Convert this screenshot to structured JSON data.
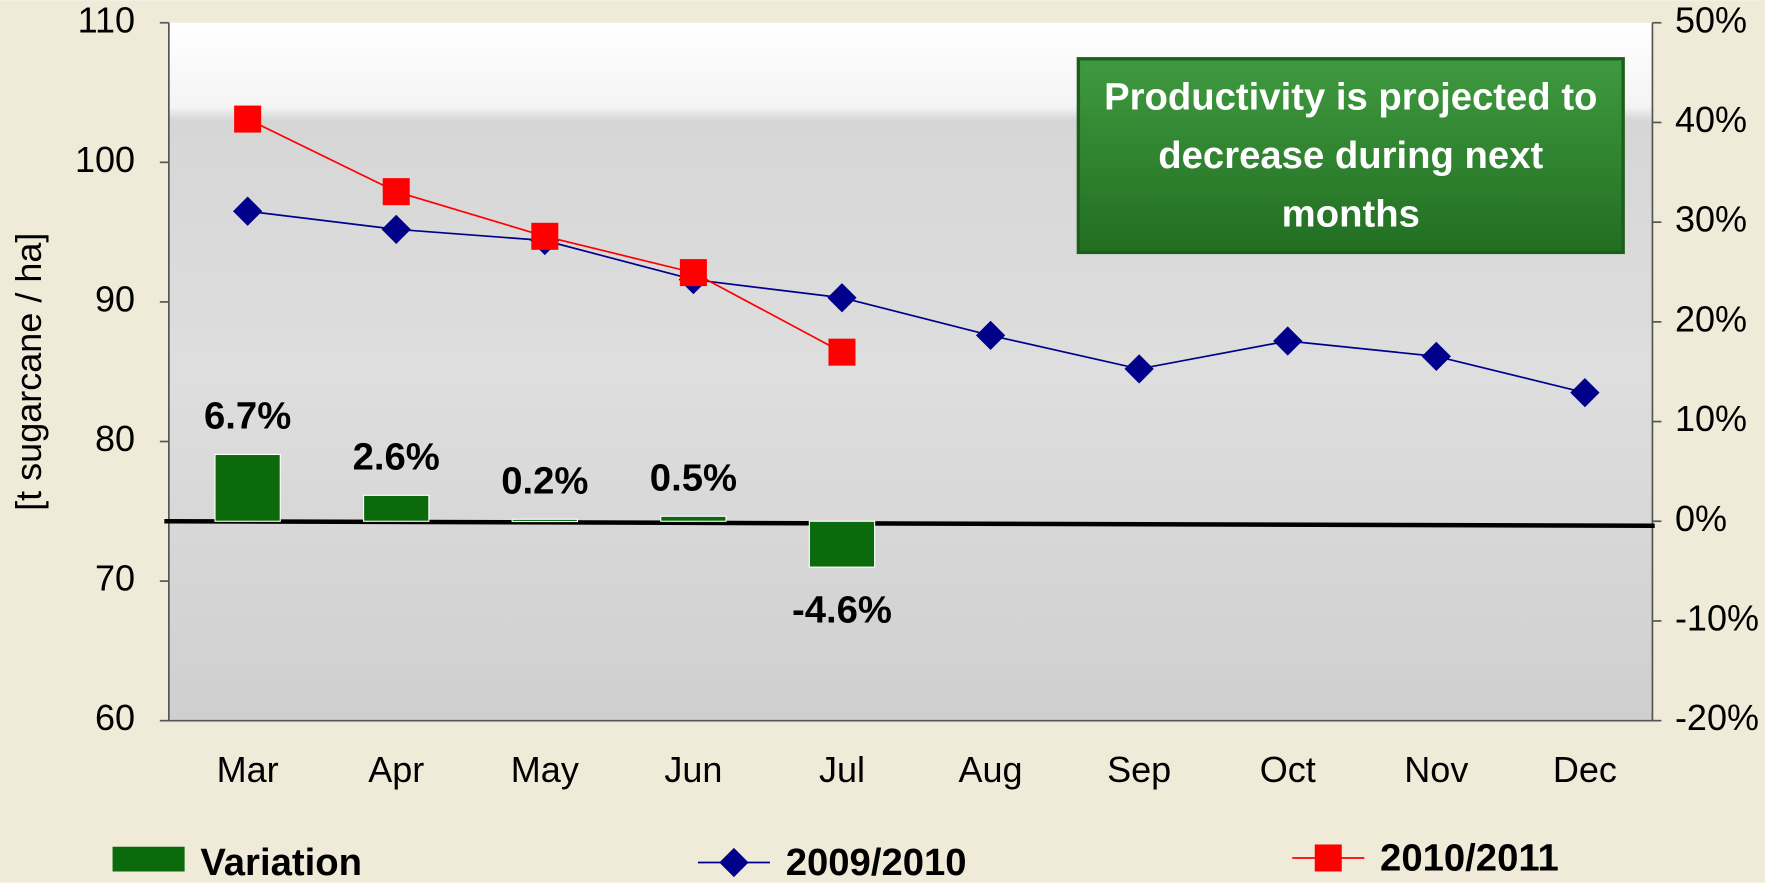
{
  "chart_data": {
    "type": "combo",
    "categories": [
      "Mar",
      "Apr",
      "May",
      "Jun",
      "Jul",
      "Aug",
      "Sep",
      "Oct",
      "Nov",
      "Dec"
    ],
    "y_label": "[t sugarcane / ha]",
    "annotation": "Productivity is projected to decrease during next months",
    "ylim": [
      60,
      110
    ],
    "yticks": [
      60,
      70,
      80,
      90,
      100,
      110
    ],
    "y2lim": [
      -20,
      50
    ],
    "y2ticks": [
      {
        "value": -20,
        "label": "-20%"
      },
      {
        "value": -10,
        "label": "-10%"
      },
      {
        "value": 0,
        "label": "0%"
      },
      {
        "value": 10,
        "label": "10%"
      },
      {
        "value": 20,
        "label": "20%"
      },
      {
        "value": 30,
        "label": "30%"
      },
      {
        "value": 40,
        "label": "40%"
      },
      {
        "value": 50,
        "label": "50%"
      }
    ],
    "legend": "bottom",
    "series": [
      {
        "name": "Variation",
        "type": "bar",
        "axis": "y2",
        "color": "#0b6a0b",
        "values": [
          6.7,
          2.6,
          0.2,
          0.5,
          -4.6,
          null,
          null,
          null,
          null,
          null
        ],
        "value_labels": [
          "6.7%",
          "2.6%",
          "0.2%",
          "0.5%",
          "-4.6%",
          null,
          null,
          null,
          null,
          null
        ]
      },
      {
        "name": "2009/2010",
        "type": "line",
        "marker": "diamond",
        "color": "#00008b",
        "values": [
          96.5,
          95.2,
          94.4,
          91.6,
          90.3,
          87.6,
          85.2,
          87.2,
          86.1,
          83.5
        ]
      },
      {
        "name": "2010/2011",
        "type": "line",
        "marker": "square",
        "color": "#ff0000",
        "values": [
          103.1,
          97.9,
          94.7,
          92.1,
          86.4,
          null,
          null,
          null,
          null,
          null
        ]
      }
    ]
  }
}
